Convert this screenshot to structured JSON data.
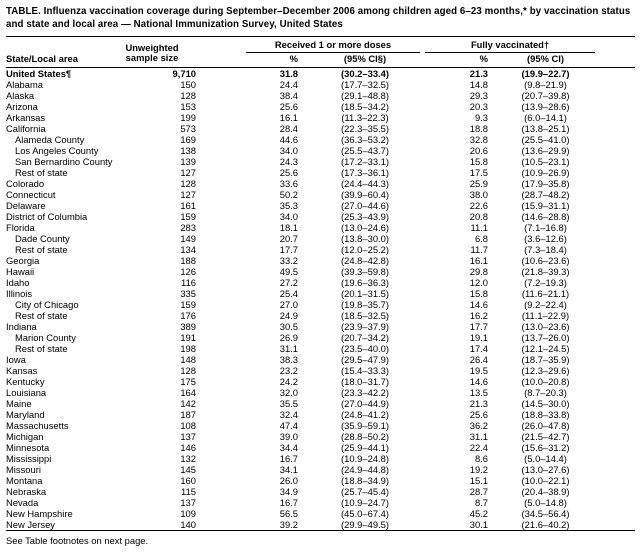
{
  "title": "TABLE. Influenza vaccination coverage during September–December 2006 among children aged 6–23 months,* by vaccination status and state and local area — National Immunization Survey, United States",
  "footnote": "See Table footnotes on next page.",
  "table": {
    "headers": {
      "area": "State/Local area",
      "sample_line1": "Unweighted",
      "sample_line2": "sample size",
      "group1": "Received 1 or more doses",
      "group2": "Fully vaccinated†",
      "pct": "%",
      "ci1": "(95% CI§)",
      "ci2": "(95% CI)"
    },
    "rows": [
      {
        "area": "United States¶",
        "indent": 0,
        "bold": true,
        "sample": "9,710",
        "pct1": "31.8",
        "ci1": "(30.2–33.4)",
        "pct2": "21.3",
        "ci2": "(19.9–22.7)"
      },
      {
        "area": "Alabama",
        "indent": 0,
        "bold": false,
        "sample": "150",
        "pct1": "24.4",
        "ci1": "(17.7–32.5)",
        "pct2": "14.8",
        "ci2": "(9.8–21.9)"
      },
      {
        "area": "Alaska",
        "indent": 0,
        "bold": false,
        "sample": "128",
        "pct1": "38.4",
        "ci1": "(29.1–48.8)",
        "pct2": "29.3",
        "ci2": "(20.7–39.8)"
      },
      {
        "area": "Arizona",
        "indent": 0,
        "bold": false,
        "sample": "153",
        "pct1": "25.6",
        "ci1": "(18.5–34.2)",
        "pct2": "20.3",
        "ci2": "(13.9–28.6)"
      },
      {
        "area": "Arkansas",
        "indent": 0,
        "bold": false,
        "sample": "199",
        "pct1": "16.1",
        "ci1": "(11.3–22.3)",
        "pct2": "9.3",
        "ci2": "(6.0–14.1)"
      },
      {
        "area": "California",
        "indent": 0,
        "bold": false,
        "sample": "573",
        "pct1": "28.4",
        "ci1": "(22.3–35.5)",
        "pct2": "18.8",
        "ci2": "(13.8–25.1)"
      },
      {
        "area": "Alameda County",
        "indent": 1,
        "bold": false,
        "sample": "169",
        "pct1": "44.6",
        "ci1": "(36.3–53.2)",
        "pct2": "32.8",
        "ci2": "(25.5–41.0)"
      },
      {
        "area": "Los Angeles County",
        "indent": 1,
        "bold": false,
        "sample": "138",
        "pct1": "34.0",
        "ci1": "(25.5–43.7)",
        "pct2": "20.6",
        "ci2": "(13.6–29.9)"
      },
      {
        "area": "San Bernardino County",
        "indent": 1,
        "bold": false,
        "sample": "139",
        "pct1": "24.3",
        "ci1": "(17.2–33.1)",
        "pct2": "15.8",
        "ci2": "(10.5–23.1)"
      },
      {
        "area": "Rest of state",
        "indent": 1,
        "bold": false,
        "sample": "127",
        "pct1": "25.6",
        "ci1": "(17.3–36.1)",
        "pct2": "17.5",
        "ci2": "(10.9–26.9)"
      },
      {
        "area": "Colorado",
        "indent": 0,
        "bold": false,
        "sample": "128",
        "pct1": "33.6",
        "ci1": "(24.4–44.3)",
        "pct2": "25.9",
        "ci2": "(17.9–35.8)"
      },
      {
        "area": "Connecticut",
        "indent": 0,
        "bold": false,
        "sample": "127",
        "pct1": "50.2",
        "ci1": "(39.9–60.4)",
        "pct2": "38.0",
        "ci2": "(28.7–48.2)"
      },
      {
        "area": "Delaware",
        "indent": 0,
        "bold": false,
        "sample": "161",
        "pct1": "35.3",
        "ci1": "(27.0–44.6)",
        "pct2": "22.6",
        "ci2": "(15.9–31.1)"
      },
      {
        "area": "District of Columbia",
        "indent": 0,
        "bold": false,
        "sample": "159",
        "pct1": "34.0",
        "ci1": "(25.3–43.9)",
        "pct2": "20.8",
        "ci2": "(14.6–28.8)"
      },
      {
        "area": "Florida",
        "indent": 0,
        "bold": false,
        "sample": "283",
        "pct1": "18.1",
        "ci1": "(13.0–24.6)",
        "pct2": "11.1",
        "ci2": "(7.1–16.8)"
      },
      {
        "area": "Dade County",
        "indent": 1,
        "bold": false,
        "sample": "149",
        "pct1": "20.7",
        "ci1": "(13.8–30.0)",
        "pct2": "6.8",
        "ci2": "(3.6–12.6)"
      },
      {
        "area": "Rest of state",
        "indent": 1,
        "bold": false,
        "sample": "134",
        "pct1": "17.7",
        "ci1": "(12.0–25.2)",
        "pct2": "11.7",
        "ci2": "(7.3–18.4)"
      },
      {
        "area": "Georgia",
        "indent": 0,
        "bold": false,
        "sample": "188",
        "pct1": "33.2",
        "ci1": "(24.8–42.8)",
        "pct2": "16.1",
        "ci2": "(10.6–23.6)"
      },
      {
        "area": "Hawaii",
        "indent": 0,
        "bold": false,
        "sample": "126",
        "pct1": "49.5",
        "ci1": "(39.3–59.8)",
        "pct2": "29.8",
        "ci2": "(21.8–39.3)"
      },
      {
        "area": "Idaho",
        "indent": 0,
        "bold": false,
        "sample": "116",
        "pct1": "27.2",
        "ci1": "(19.6–36.3)",
        "pct2": "12.0",
        "ci2": "(7.2–19.3)"
      },
      {
        "area": "Illinois",
        "indent": 0,
        "bold": false,
        "sample": "335",
        "pct1": "25.4",
        "ci1": "(20.1–31.5)",
        "pct2": "15.8",
        "ci2": "(11.6–21.1)"
      },
      {
        "area": "City of Chicago",
        "indent": 1,
        "bold": false,
        "sample": "159",
        "pct1": "27.0",
        "ci1": "(19.8–35.7)",
        "pct2": "14.6",
        "ci2": "(9.2–22.4)"
      },
      {
        "area": "Rest of state",
        "indent": 1,
        "bold": false,
        "sample": "176",
        "pct1": "24.9",
        "ci1": "(18.5–32.5)",
        "pct2": "16.2",
        "ci2": "(11.1–22.9)"
      },
      {
        "area": "Indiana",
        "indent": 0,
        "bold": false,
        "sample": "389",
        "pct1": "30.5",
        "ci1": "(23.9–37.9)",
        "pct2": "17.7",
        "ci2": "(13.0–23.6)"
      },
      {
        "area": "Marion County",
        "indent": 1,
        "bold": false,
        "sample": "191",
        "pct1": "26.9",
        "ci1": "(20.7–34.2)",
        "pct2": "19.1",
        "ci2": "(13.7–26.0)"
      },
      {
        "area": "Rest of state",
        "indent": 1,
        "bold": false,
        "sample": "198",
        "pct1": "31.1",
        "ci1": "(23.5–40.0)",
        "pct2": "17.4",
        "ci2": "(12.1–24.5)"
      },
      {
        "area": "Iowa",
        "indent": 0,
        "bold": false,
        "sample": "148",
        "pct1": "38.3",
        "ci1": "(29.5–47.9)",
        "pct2": "26.4",
        "ci2": "(18.7–35.9)"
      },
      {
        "area": "Kansas",
        "indent": 0,
        "bold": false,
        "sample": "128",
        "pct1": "23.2",
        "ci1": "(15.4–33.3)",
        "pct2": "19.5",
        "ci2": "(12.3–29.6)"
      },
      {
        "area": "Kentucky",
        "indent": 0,
        "bold": false,
        "sample": "175",
        "pct1": "24.2",
        "ci1": "(18.0–31.7)",
        "pct2": "14.6",
        "ci2": "(10.0–20.8)"
      },
      {
        "area": "Louisiana",
        "indent": 0,
        "bold": false,
        "sample": "164",
        "pct1": "32.0",
        "ci1": "(23.3–42.2)",
        "pct2": "13.5",
        "ci2": "(8.7–20.3)"
      },
      {
        "area": "Maine",
        "indent": 0,
        "bold": false,
        "sample": "142",
        "pct1": "35.5",
        "ci1": "(27.0–44.9)",
        "pct2": "21.3",
        "ci2": "(14.5–30.0)"
      },
      {
        "area": "Maryland",
        "indent": 0,
        "bold": false,
        "sample": "187",
        "pct1": "32.4",
        "ci1": "(24.8–41.2)",
        "pct2": "25.6",
        "ci2": "(18.8–33.8)"
      },
      {
        "area": "Massachusetts",
        "indent": 0,
        "bold": false,
        "sample": "108",
        "pct1": "47.4",
        "ci1": "(35.9–59.1)",
        "pct2": "36.2",
        "ci2": "(26.0–47.8)"
      },
      {
        "area": "Michigan",
        "indent": 0,
        "bold": false,
        "sample": "137",
        "pct1": "39.0",
        "ci1": "(28.8–50.2)",
        "pct2": "31.1",
        "ci2": "(21.5–42.7)"
      },
      {
        "area": "Minnesota",
        "indent": 0,
        "bold": false,
        "sample": "146",
        "pct1": "34.4",
        "ci1": "(25.9–44.1)",
        "pct2": "22.4",
        "ci2": "(15.6–31.2)"
      },
      {
        "area": "Mississippi",
        "indent": 0,
        "bold": false,
        "sample": "132",
        "pct1": "16.7",
        "ci1": "(10.9–24.8)",
        "pct2": "8.6",
        "ci2": "(5.0–14.4)"
      },
      {
        "area": "Missouri",
        "indent": 0,
        "bold": false,
        "sample": "145",
        "pct1": "34.1",
        "ci1": "(24.9–44.8)",
        "pct2": "19.2",
        "ci2": "(13.0–27.6)"
      },
      {
        "area": "Montana",
        "indent": 0,
        "bold": false,
        "sample": "160",
        "pct1": "26.0",
        "ci1": "(18.8–34.9)",
        "pct2": "15.1",
        "ci2": "(10.0–22.1)"
      },
      {
        "area": "Nebraska",
        "indent": 0,
        "bold": false,
        "sample": "115",
        "pct1": "34.9",
        "ci1": "(25.7–45.4)",
        "pct2": "28.7",
        "ci2": "(20.4–38.9)"
      },
      {
        "area": "Nevada",
        "indent": 0,
        "bold": false,
        "sample": "137",
        "pct1": "16.7",
        "ci1": "(10.9–24.7)",
        "pct2": "8.7",
        "ci2": "(5.0–14.8)"
      },
      {
        "area": "New Hampshire",
        "indent": 0,
        "bold": false,
        "sample": "109",
        "pct1": "56.5",
        "ci1": "(45.0–67.4)",
        "pct2": "45.2",
        "ci2": "(34.5–56.4)"
      },
      {
        "area": "New Jersey",
        "indent": 0,
        "bold": false,
        "sample": "140",
        "pct1": "39.2",
        "ci1": "(29.9–49.5)",
        "pct2": "30.1",
        "ci2": "(21.6–40.2)"
      }
    ]
  }
}
